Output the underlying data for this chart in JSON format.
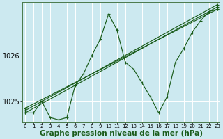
{
  "background_color": "#cce9f0",
  "grid_color": "#b0d8e0",
  "line_color": "#1a5c1a",
  "xlabel": "Graphe pression niveau de la mer (hPa)",
  "xlabel_fontsize": 7.5,
  "ytick_fontsize": 7,
  "xtick_fontsize": 5,
  "yticks": [
    1025,
    1026
  ],
  "ylim": [
    1024.55,
    1027.15
  ],
  "xlim": [
    -0.3,
    23.3
  ],
  "xticks": [
    0,
    1,
    2,
    3,
    4,
    5,
    6,
    7,
    8,
    9,
    10,
    11,
    12,
    13,
    14,
    15,
    16,
    17,
    18,
    19,
    20,
    21,
    22,
    23
  ],
  "series": [
    {
      "x": [
        0,
        1,
        2,
        3,
        4,
        5,
        6,
        7,
        8,
        9,
        10,
        11,
        12,
        13,
        14,
        15,
        16,
        17,
        18,
        19,
        20,
        21,
        22,
        23
      ],
      "y": [
        1024.75,
        1024.75,
        1025.0,
        1024.65,
        1024.6,
        1024.65,
        1025.35,
        1025.6,
        1026.0,
        1026.35,
        1026.9,
        1026.55,
        1025.85,
        1025.7,
        1025.4,
        1025.1,
        1024.75,
        1025.1,
        1025.85,
        1026.15,
        1026.5,
        1026.75,
        1026.95,
        1027.0
      ]
    },
    {
      "x": [
        0,
        23
      ],
      "y": [
        1024.75,
        1027.05
      ]
    },
    {
      "x": [
        0,
        23
      ],
      "y": [
        1024.8,
        1027.1
      ]
    },
    {
      "x": [
        0,
        23
      ],
      "y": [
        1024.85,
        1027.0
      ]
    }
  ]
}
